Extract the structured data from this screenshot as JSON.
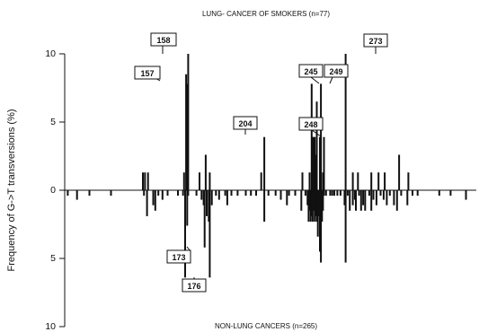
{
  "chart_data": {
    "type": "bar",
    "title_top": "LUNG- CANCER OF SMOKERS (n=77)",
    "title_bottom": "NON-LUNG CANCERS (n=265)",
    "ylabel": "Frequency of G->T transversions (%)",
    "y_ticks": [
      "10",
      "5",
      "0",
      "5",
      "10"
    ],
    "ylim": [
      -10,
      10
    ],
    "xlim": [
      0,
      400
    ],
    "series": [
      {
        "name": "LUNG- CANCER OF SMOKERS (n=77)",
        "direction": "up",
        "points": [
          {
            "x": 76,
            "y": 1.3
          },
          {
            "x": 78,
            "y": 1.3
          },
          {
            "x": 81,
            "y": 1.3
          },
          {
            "x": 116,
            "y": 1.3
          },
          {
            "x": 118,
            "y": 8.5
          },
          {
            "x": 119,
            "y": 7.8
          },
          {
            "x": 120,
            "y": 10.0
          },
          {
            "x": 131,
            "y": 1.3
          },
          {
            "x": 137,
            "y": 2.6
          },
          {
            "x": 141,
            "y": 1.3
          },
          {
            "x": 191,
            "y": 1.3
          },
          {
            "x": 194,
            "y": 3.9
          },
          {
            "x": 231,
            "y": 1.3
          },
          {
            "x": 238,
            "y": 1.3
          },
          {
            "x": 240,
            "y": 7.8
          },
          {
            "x": 241,
            "y": 3.9
          },
          {
            "x": 242,
            "y": 3.9
          },
          {
            "x": 243,
            "y": 3.9
          },
          {
            "x": 244,
            "y": 2.6
          },
          {
            "x": 245,
            "y": 6.5
          },
          {
            "x": 248,
            "y": 3.9
          },
          {
            "x": 249,
            "y": 7.8
          },
          {
            "x": 251,
            "y": 1.3
          },
          {
            "x": 252,
            "y": 3.9
          },
          {
            "x": 273,
            "y": 10.0
          },
          {
            "x": 280,
            "y": 1.3
          },
          {
            "x": 285,
            "y": 1.3
          },
          {
            "x": 298,
            "y": 1.3
          },
          {
            "x": 305,
            "y": 1.3
          },
          {
            "x": 311,
            "y": 1.3
          },
          {
            "x": 325,
            "y": 2.6
          },
          {
            "x": 334,
            "y": 1.3
          }
        ]
      },
      {
        "name": "NON-LUNG CANCERS (n=265)",
        "direction": "down",
        "points": [
          {
            "x": 3,
            "y": 0.4
          },
          {
            "x": 12,
            "y": 0.7
          },
          {
            "x": 24,
            "y": 0.4
          },
          {
            "x": 45,
            "y": 0.4
          },
          {
            "x": 77,
            "y": 0.4
          },
          {
            "x": 80,
            "y": 1.9
          },
          {
            "x": 86,
            "y": 1.1
          },
          {
            "x": 88,
            "y": 1.5
          },
          {
            "x": 91,
            "y": 0.4
          },
          {
            "x": 95,
            "y": 0.7
          },
          {
            "x": 100,
            "y": 0.4
          },
          {
            "x": 110,
            "y": 0.4
          },
          {
            "x": 115,
            "y": 0.4
          },
          {
            "x": 117,
            "y": 6.4
          },
          {
            "x": 119,
            "y": 2.6
          },
          {
            "x": 120,
            "y": 0.4
          },
          {
            "x": 128,
            "y": 0.4
          },
          {
            "x": 133,
            "y": 0.7
          },
          {
            "x": 135,
            "y": 1.1
          },
          {
            "x": 136,
            "y": 4.2
          },
          {
            "x": 138,
            "y": 1.9
          },
          {
            "x": 140,
            "y": 2.3
          },
          {
            "x": 141,
            "y": 6.4
          },
          {
            "x": 143,
            "y": 1.1
          },
          {
            "x": 147,
            "y": 0.4
          },
          {
            "x": 150,
            "y": 0.7
          },
          {
            "x": 156,
            "y": 0.4
          },
          {
            "x": 158,
            "y": 1.1
          },
          {
            "x": 162,
            "y": 0.4
          },
          {
            "x": 168,
            "y": 0.4
          },
          {
            "x": 176,
            "y": 0.4
          },
          {
            "x": 181,
            "y": 0.4
          },
          {
            "x": 186,
            "y": 0.4
          },
          {
            "x": 194,
            "y": 2.3
          },
          {
            "x": 198,
            "y": 0.4
          },
          {
            "x": 205,
            "y": 0.4
          },
          {
            "x": 210,
            "y": 0.7
          },
          {
            "x": 216,
            "y": 1.1
          },
          {
            "x": 218,
            "y": 0.4
          },
          {
            "x": 224,
            "y": 0.4
          },
          {
            "x": 230,
            "y": 1.5
          },
          {
            "x": 234,
            "y": 0.4
          },
          {
            "x": 236,
            "y": 1.1
          },
          {
            "x": 237,
            "y": 2.3
          },
          {
            "x": 238,
            "y": 1.5
          },
          {
            "x": 239,
            "y": 2.3
          },
          {
            "x": 240,
            "y": 1.9
          },
          {
            "x": 241,
            "y": 2.3
          },
          {
            "x": 242,
            "y": 1.5
          },
          {
            "x": 243,
            "y": 2.3
          },
          {
            "x": 244,
            "y": 1.9
          },
          {
            "x": 245,
            "y": 2.3
          },
          {
            "x": 246,
            "y": 3.4
          },
          {
            "x": 247,
            "y": 1.9
          },
          {
            "x": 248,
            "y": 4.5
          },
          {
            "x": 249,
            "y": 5.3
          },
          {
            "x": 250,
            "y": 2.3
          },
          {
            "x": 251,
            "y": 1.5
          },
          {
            "x": 252,
            "y": 0.4
          },
          {
            "x": 254,
            "y": 0.4
          },
          {
            "x": 258,
            "y": 0.4
          },
          {
            "x": 260,
            "y": 0.4
          },
          {
            "x": 262,
            "y": 0.4
          },
          {
            "x": 265,
            "y": 0.4
          },
          {
            "x": 268,
            "y": 0.4
          },
          {
            "x": 272,
            "y": 1.1
          },
          {
            "x": 273,
            "y": 5.3
          },
          {
            "x": 275,
            "y": 0.4
          },
          {
            "x": 277,
            "y": 1.5
          },
          {
            "x": 280,
            "y": 1.1
          },
          {
            "x": 282,
            "y": 0.7
          },
          {
            "x": 283,
            "y": 1.5
          },
          {
            "x": 286,
            "y": 0.4
          },
          {
            "x": 288,
            "y": 1.5
          },
          {
            "x": 290,
            "y": 1.1
          },
          {
            "x": 292,
            "y": 1.5
          },
          {
            "x": 296,
            "y": 0.4
          },
          {
            "x": 298,
            "y": 1.5
          },
          {
            "x": 300,
            "y": 0.7
          },
          {
            "x": 303,
            "y": 1.1
          },
          {
            "x": 307,
            "y": 0.4
          },
          {
            "x": 310,
            "y": 0.7
          },
          {
            "x": 313,
            "y": 1.1
          },
          {
            "x": 316,
            "y": 0.4
          },
          {
            "x": 320,
            "y": 1.1
          },
          {
            "x": 323,
            "y": 1.5
          },
          {
            "x": 327,
            "y": 0.4
          },
          {
            "x": 333,
            "y": 1.1
          },
          {
            "x": 338,
            "y": 0.4
          },
          {
            "x": 343,
            "y": 0.4
          },
          {
            "x": 364,
            "y": 0.4
          },
          {
            "x": 375,
            "y": 0.4
          },
          {
            "x": 390,
            "y": 0.7
          }
        ]
      }
    ],
    "annotations": [
      {
        "label": "158",
        "x": 120
      },
      {
        "label": "157",
        "x": 119
      },
      {
        "label": "204",
        "x": 194
      },
      {
        "label": "245",
        "x": 245
      },
      {
        "label": "249",
        "x": 249
      },
      {
        "label": "248",
        "x": 248
      },
      {
        "label": "273",
        "x": 273
      },
      {
        "label": "173",
        "x": 136
      },
      {
        "label": "176",
        "x": 141
      }
    ]
  }
}
